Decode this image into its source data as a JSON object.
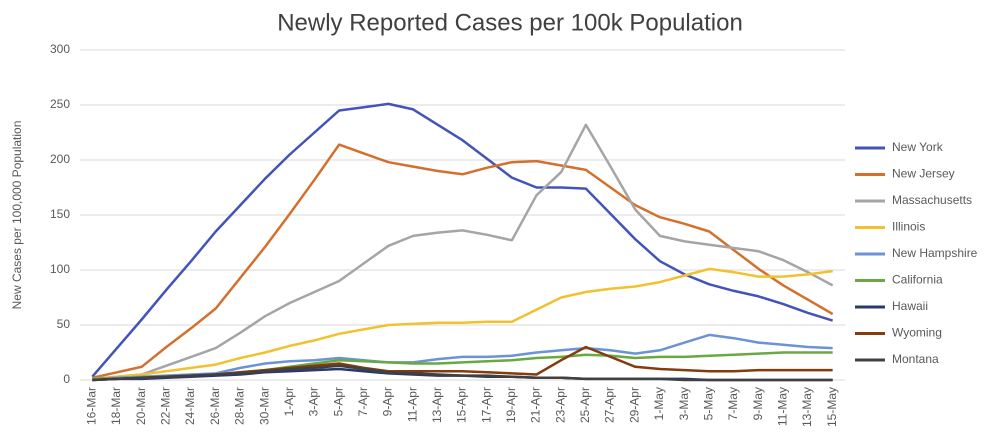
{
  "chart_data": {
    "type": "line",
    "title": "Newly Reported Cases per 100k Population",
    "y_label": "New Cases per 100,000 Population",
    "categories": [
      "16-Mar",
      "18-Mar",
      "20-Mar",
      "22-Mar",
      "24-Mar",
      "26-Mar",
      "28-Mar",
      "30-Mar",
      "1-Apr",
      "3-Apr",
      "5-Apr",
      "7-Apr",
      "9-Apr",
      "11-Apr",
      "13-Apr",
      "15-Apr",
      "17-Apr",
      "19-Apr",
      "21-Apr",
      "23-Apr",
      "25-Apr",
      "27-Apr",
      "29-Apr",
      "1-May",
      "3-May",
      "5-May",
      "7-May",
      "9-May",
      "11-May",
      "13-May",
      "15-May"
    ],
    "series": [
      {
        "name": "New York",
        "color": "#4354b8",
        "values": [
          3,
          29,
          55,
          82,
          108,
          135,
          159,
          183,
          205,
          225,
          245,
          248,
          251,
          246,
          232,
          218,
          201,
          184,
          175,
          175,
          174,
          151,
          128,
          108,
          96,
          87,
          81,
          76,
          69,
          61,
          54
        ]
      },
      {
        "name": "New Jersey",
        "color": "#d4702c",
        "values": [
          2,
          7,
          12,
          30,
          47,
          65,
          93,
          121,
          151,
          182,
          214,
          206,
          198,
          194,
          190,
          187,
          193,
          198,
          199,
          195,
          191,
          175,
          159,
          148,
          142,
          135,
          118,
          101,
          86,
          73,
          60
        ]
      },
      {
        "name": "Massachusetts",
        "color": "#a5a5a5",
        "values": [
          1,
          3,
          5,
          13,
          21,
          29,
          43,
          58,
          70,
          80,
          90,
          106,
          122,
          131,
          134,
          136,
          132,
          127,
          168,
          189,
          232,
          194,
          155,
          131,
          126,
          123,
          120,
          117,
          109,
          98,
          86
        ]
      },
      {
        "name": "Illinois",
        "color": "#f2c12e",
        "values": [
          1,
          3,
          5,
          8,
          11,
          14,
          20,
          25,
          31,
          36,
          42,
          46,
          50,
          51,
          52,
          52,
          53,
          53,
          64,
          75,
          80,
          83,
          85,
          89,
          95,
          101,
          98,
          94,
          94,
          96,
          99
        ]
      },
      {
        "name": "New Hampshire",
        "color": "#6b93d6",
        "values": [
          1,
          2,
          3,
          4,
          5,
          6,
          11,
          15,
          17,
          18,
          20,
          18,
          16,
          16,
          19,
          21,
          21,
          22,
          25,
          27,
          29,
          27,
          24,
          27,
          34,
          41,
          38,
          34,
          32,
          30,
          29
        ]
      },
      {
        "name": "California",
        "color": "#6aa842",
        "values": [
          1,
          1,
          2,
          3,
          4,
          5,
          7,
          9,
          12,
          15,
          18,
          17,
          16,
          15,
          15,
          16,
          17,
          18,
          20,
          21,
          23,
          22,
          20,
          21,
          21,
          22,
          23,
          24,
          25,
          25,
          25
        ]
      },
      {
        "name": "Hawaii",
        "color": "#263a6e",
        "values": [
          0,
          1,
          1,
          2,
          3,
          4,
          5,
          7,
          8,
          9,
          10,
          8,
          6,
          5,
          4,
          4,
          3,
          3,
          2,
          2,
          1,
          1,
          1,
          1,
          1,
          0,
          0,
          0,
          0,
          0,
          0
        ]
      },
      {
        "name": "Wyoming",
        "color": "#843c0c",
        "values": [
          0,
          1,
          2,
          3,
          4,
          5,
          7,
          9,
          11,
          13,
          15,
          11,
          8,
          8,
          8,
          8,
          7,
          6,
          5,
          18,
          30,
          21,
          12,
          10,
          9,
          8,
          8,
          9,
          9,
          9,
          9
        ]
      },
      {
        "name": "Montana",
        "color": "#404040",
        "values": [
          0,
          1,
          2,
          3,
          4,
          5,
          6,
          8,
          10,
          11,
          13,
          10,
          7,
          6,
          5,
          4,
          4,
          3,
          2,
          2,
          1,
          1,
          1,
          1,
          0,
          0,
          0,
          0,
          0,
          0,
          0
        ]
      }
    ],
    "ylim": [
      0,
      300
    ],
    "yticks": [
      0,
      50,
      100,
      150,
      200,
      250,
      300
    ],
    "grid": true,
    "legend": "right"
  }
}
